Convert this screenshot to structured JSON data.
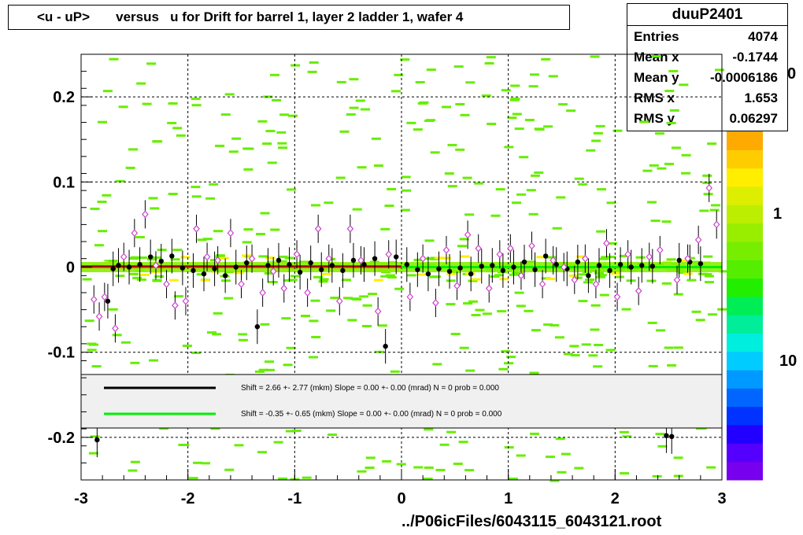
{
  "title": "<u - uP>       versus   u for Drift for barrel 1, layer 2 ladder 1, wafer 4",
  "stats": {
    "name": "duuP2401",
    "rows": [
      {
        "label": "Entries",
        "value": "4074"
      },
      {
        "label": "Mean x",
        "value": "-0.1744"
      },
      {
        "label": "Mean y",
        "value": "-0.0006186"
      },
      {
        "label": "RMS x",
        "value": "1.653"
      },
      {
        "label": "RMS y",
        "value": "0.06297"
      }
    ]
  },
  "footer": "../P06icFiles/6043115_6043121.root",
  "colors": {
    "black_fit": "#000000",
    "green_fit": "#00ee00",
    "red_fit": "#ff0000",
    "histogram": "#66ee00",
    "profile_open": "#cc44cc"
  },
  "chart_data": {
    "type": "scatter",
    "title": "<u - uP>       versus   u for Drift for barrel 1, layer 2 ladder 1, wafer 4",
    "xlim": [
      -3,
      3
    ],
    "ylim": [
      -0.25,
      0.25
    ],
    "x_ticks": [
      "-3",
      "-2",
      "-1",
      "0",
      "1",
      "2",
      "3"
    ],
    "y_ticks": [
      "-0.2",
      "-0.1",
      "0",
      "0.1",
      "0.2"
    ],
    "grid": true,
    "colorbar_ticks": [
      "1"
    ],
    "colorbar_partial": [
      "0",
      "10"
    ],
    "legend": [
      {
        "color": "#000000",
        "text": "Shift =    2.66 +- 2.77 (mkm) Slope =    0.00 +- 0.00 (mrad)  N = 0 prob = 0.000"
      },
      {
        "color": "#00ee00",
        "text": "Shift =   -0.35 +- 0.65 (mkm) Slope =    0.00 +- 0.00 (mrad)  N = 0 prob = 0.000"
      }
    ],
    "profile_solid": [
      {
        "x": -2.85,
        "y": -0.203
      },
      {
        "x": -2.75,
        "y": -0.04
      },
      {
        "x": -2.7,
        "y": -0.002
      },
      {
        "x": -2.65,
        "y": 0.002
      },
      {
        "x": -2.55,
        "y": 0.0
      },
      {
        "x": -2.45,
        "y": 0.003
      },
      {
        "x": -2.35,
        "y": 0.012
      },
      {
        "x": -2.25,
        "y": 0.007
      },
      {
        "x": -2.15,
        "y": 0.013
      },
      {
        "x": -2.05,
        "y": -0.001
      },
      {
        "x": -1.95,
        "y": -0.004
      },
      {
        "x": -1.85,
        "y": -0.008
      },
      {
        "x": -1.75,
        "y": -0.002
      },
      {
        "x": -1.65,
        "y": -0.01
      },
      {
        "x": -1.55,
        "y": 0.0
      },
      {
        "x": -1.45,
        "y": 0.005
      },
      {
        "x": -1.35,
        "y": -0.07
      },
      {
        "x": -1.25,
        "y": 0.002
      },
      {
        "x": -1.15,
        "y": 0.008
      },
      {
        "x": -1.05,
        "y": 0.003
      },
      {
        "x": -0.95,
        "y": -0.006
      },
      {
        "x": -0.85,
        "y": 0.005
      },
      {
        "x": -0.75,
        "y": -0.003
      },
      {
        "x": -0.65,
        "y": 0.002
      },
      {
        "x": -0.55,
        "y": -0.004
      },
      {
        "x": -0.45,
        "y": 0.008
      },
      {
        "x": -0.35,
        "y": 0.003
      },
      {
        "x": -0.25,
        "y": 0.01
      },
      {
        "x": -0.15,
        "y": -0.093
      },
      {
        "x": -0.05,
        "y": 0.012
      },
      {
        "x": 0.05,
        "y": 0.003
      },
      {
        "x": 0.15,
        "y": -0.003
      },
      {
        "x": 0.25,
        "y": -0.008
      },
      {
        "x": 0.35,
        "y": -0.002
      },
      {
        "x": 0.45,
        "y": -0.005
      },
      {
        "x": 0.55,
        "y": -0.001
      },
      {
        "x": 0.65,
        "y": -0.008
      },
      {
        "x": 0.75,
        "y": 0.001
      },
      {
        "x": 0.85,
        "y": 0.002
      },
      {
        "x": 0.95,
        "y": -0.004
      },
      {
        "x": 1.05,
        "y": 0.0
      },
      {
        "x": 1.15,
        "y": 0.006
      },
      {
        "x": 1.25,
        "y": -0.003
      },
      {
        "x": 1.35,
        "y": 0.013
      },
      {
        "x": 1.45,
        "y": 0.003
      },
      {
        "x": 1.55,
        "y": -0.002
      },
      {
        "x": 1.65,
        "y": 0.006
      },
      {
        "x": 1.75,
        "y": -0.01
      },
      {
        "x": 1.85,
        "y": 0.002
      },
      {
        "x": 1.95,
        "y": -0.004
      },
      {
        "x": 2.05,
        "y": 0.003
      },
      {
        "x": 2.15,
        "y": 0.0
      },
      {
        "x": 2.25,
        "y": 0.002
      },
      {
        "x": 2.35,
        "y": 0.001
      },
      {
        "x": 2.48,
        "y": -0.198
      },
      {
        "x": 2.53,
        "y": -0.199
      },
      {
        "x": 2.6,
        "y": 0.008
      },
      {
        "x": 2.7,
        "y": 0.006
      },
      {
        "x": 2.8,
        "y": 0.004
      }
    ],
    "profile_open": [
      {
        "x": -2.88,
        "y": -0.038
      },
      {
        "x": -2.83,
        "y": -0.058
      },
      {
        "x": -2.78,
        "y": -0.035
      },
      {
        "x": -2.68,
        "y": -0.072
      },
      {
        "x": -2.6,
        "y": 0.012
      },
      {
        "x": -2.5,
        "y": 0.04
      },
      {
        "x": -2.4,
        "y": 0.062
      },
      {
        "x": -2.3,
        "y": 0.002
      },
      {
        "x": -2.2,
        "y": -0.02
      },
      {
        "x": -2.12,
        "y": -0.045
      },
      {
        "x": -2.02,
        "y": -0.04
      },
      {
        "x": -1.92,
        "y": 0.045
      },
      {
        "x": -1.82,
        "y": 0.012
      },
      {
        "x": -1.72,
        "y": 0.008
      },
      {
        "x": -1.6,
        "y": 0.04
      },
      {
        "x": -1.5,
        "y": -0.02
      },
      {
        "x": -1.4,
        "y": 0.01
      },
      {
        "x": -1.3,
        "y": -0.03
      },
      {
        "x": -1.2,
        "y": -0.005
      },
      {
        "x": -1.1,
        "y": -0.025
      },
      {
        "x": -0.98,
        "y": 0.015
      },
      {
        "x": -0.88,
        "y": -0.03
      },
      {
        "x": -0.78,
        "y": 0.045
      },
      {
        "x": -0.68,
        "y": 0.01
      },
      {
        "x": -0.58,
        "y": -0.04
      },
      {
        "x": -0.48,
        "y": 0.045
      },
      {
        "x": -0.38,
        "y": 0.008
      },
      {
        "x": -0.22,
        "y": -0.052
      },
      {
        "x": -0.12,
        "y": 0.015
      },
      {
        "x": 0.08,
        "y": -0.035
      },
      {
        "x": 0.2,
        "y": 0.01
      },
      {
        "x": 0.32,
        "y": -0.042
      },
      {
        "x": 0.42,
        "y": 0.02
      },
      {
        "x": 0.52,
        "y": -0.022
      },
      {
        "x": 0.62,
        "y": 0.038
      },
      {
        "x": 0.72,
        "y": 0.022
      },
      {
        "x": 0.82,
        "y": -0.025
      },
      {
        "x": 0.92,
        "y": 0.015
      },
      {
        "x": 1.02,
        "y": 0.022
      },
      {
        "x": 1.12,
        "y": -0.01
      },
      {
        "x": 1.22,
        "y": 0.025
      },
      {
        "x": 1.32,
        "y": -0.02
      },
      {
        "x": 1.42,
        "y": 0.008
      },
      {
        "x": 1.52,
        "y": 0.0
      },
      {
        "x": 1.62,
        "y": -0.015
      },
      {
        "x": 1.72,
        "y": 0.01
      },
      {
        "x": 1.82,
        "y": -0.02
      },
      {
        "x": 1.92,
        "y": 0.028
      },
      {
        "x": 2.02,
        "y": -0.035
      },
      {
        "x": 2.12,
        "y": 0.015
      },
      {
        "x": 2.22,
        "y": -0.028
      },
      {
        "x": 2.32,
        "y": 0.012
      },
      {
        "x": 2.42,
        "y": 0.02
      },
      {
        "x": 2.58,
        "y": -0.015
      },
      {
        "x": 2.68,
        "y": 0.01
      },
      {
        "x": 2.78,
        "y": 0.032
      },
      {
        "x": 2.88,
        "y": 0.093
      },
      {
        "x": 2.95,
        "y": 0.05
      }
    ]
  }
}
